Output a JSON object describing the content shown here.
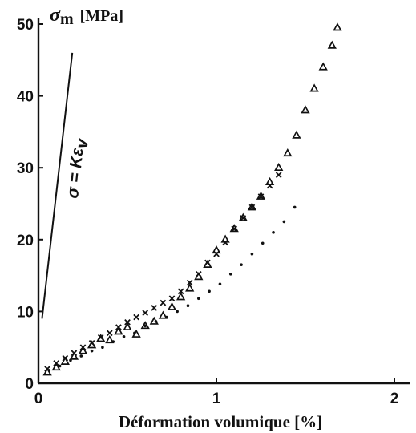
{
  "chart_data": {
    "type": "scatter",
    "title": "",
    "xlabel": "Déformation volumique [%]",
    "ylabel": {
      "symbol": "σ",
      "subscript": "m",
      "unit": "[MPa]"
    },
    "xlim": [
      0,
      2.05
    ],
    "ylim": [
      0,
      50
    ],
    "xticks": [
      "0",
      "1",
      "2"
    ],
    "yticks": [
      "0",
      "10",
      "20",
      "30",
      "40",
      "50"
    ],
    "grid": false,
    "legend": "none",
    "annotation": {
      "text": "σ = Kε",
      "subscript": "v"
    },
    "reference_line": {
      "x": [
        0.02,
        0.19
      ],
      "y": [
        9,
        46
      ]
    },
    "series": [
      {
        "marker": "triangle",
        "x": [
          0.05,
          0.1,
          0.15,
          0.2,
          0.25,
          0.3,
          0.35,
          0.4,
          0.45,
          0.5,
          0.55,
          0.6,
          0.65,
          0.7,
          0.75,
          0.8,
          0.85,
          0.9,
          0.95,
          1.0,
          1.05,
          1.1,
          1.15,
          1.2,
          1.25,
          1.3,
          1.35,
          1.4,
          1.45,
          1.5,
          1.55,
          1.6,
          1.65,
          1.68
        ],
        "y": [
          1.5,
          2.2,
          3.0,
          3.7,
          4.5,
          5.3,
          6.2,
          6.0,
          7.2,
          7.8,
          6.8,
          8.0,
          8.6,
          9.4,
          10.6,
          12.0,
          13.2,
          14.8,
          16.5,
          18.5,
          20.0,
          21.5,
          23.0,
          24.5,
          26.0,
          28.0,
          30.0,
          32.0,
          34.5,
          38.0,
          41.0,
          44.0,
          47.0,
          49.5
        ]
      },
      {
        "marker": "cross",
        "x": [
          0.05,
          0.1,
          0.15,
          0.2,
          0.25,
          0.3,
          0.35,
          0.4,
          0.45,
          0.5,
          0.55,
          0.6,
          0.65,
          0.7,
          0.75,
          0.8,
          0.85,
          0.9,
          0.95,
          1.0,
          1.05,
          1.1,
          1.15,
          1.2,
          1.25,
          1.3,
          1.35
        ],
        "y": [
          2.0,
          2.8,
          3.5,
          4.2,
          5.0,
          5.6,
          6.4,
          7.0,
          7.8,
          8.5,
          9.2,
          9.8,
          10.5,
          11.2,
          11.8,
          12.8,
          14.0,
          15.2,
          16.8,
          18.0,
          19.6,
          21.5,
          23.0,
          24.5,
          26.0,
          27.5,
          29.0
        ]
      },
      {
        "marker": "dot",
        "x": [
          0.06,
          0.12,
          0.18,
          0.24,
          0.3,
          0.36,
          0.42,
          0.48,
          0.54,
          0.6,
          0.66,
          0.72,
          0.78,
          0.84,
          0.9,
          0.96,
          1.02,
          1.08,
          1.14,
          1.2,
          1.26,
          1.32,
          1.38,
          1.44
        ],
        "y": [
          1.8,
          2.4,
          3.2,
          3.8,
          4.5,
          5.0,
          5.8,
          6.5,
          7.0,
          8.0,
          8.6,
          9.2,
          10.0,
          10.8,
          11.8,
          12.8,
          13.8,
          15.2,
          16.5,
          18.0,
          19.5,
          21.0,
          22.5,
          24.5
        ]
      }
    ]
  }
}
